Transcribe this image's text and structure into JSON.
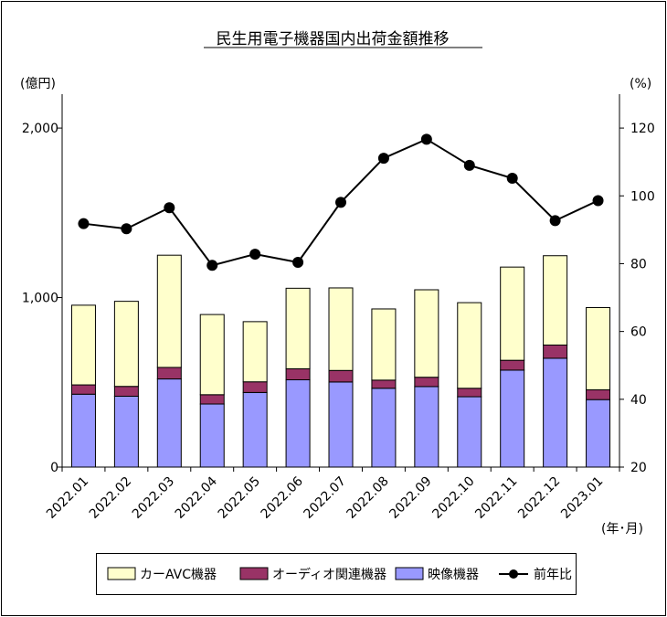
{
  "chart_data": {
    "type": "bar",
    "title": "民生用電子機器国内出荷金額推移",
    "ylabel_left": "(億円)",
    "ylabel_right": "(%)",
    "xlabel": "(年･月)",
    "categories": [
      "2022.01",
      "2022.02",
      "2022.03",
      "2022.04",
      "2022.05",
      "2022.06",
      "2022.07",
      "2022.08",
      "2022.09",
      "2022.10",
      "2022.11",
      "2022.12",
      "2023.01"
    ],
    "ylim_left": [
      0,
      2000
    ],
    "yticks_left": [
      "0",
      "1,000",
      "2,000"
    ],
    "ylim_right": [
      20,
      130
    ],
    "yticks_right": [
      "20",
      "40",
      "60",
      "80",
      "100",
      "120"
    ],
    "series": [
      {
        "name": "映像機器",
        "kind": "stacked-bar",
        "color": "#9999ff",
        "values": [
          430,
          418,
          520,
          372,
          440,
          515,
          502,
          465,
          475,
          415,
          572,
          642,
          398
        ]
      },
      {
        "name": "オーディオ関連機器",
        "kind": "stacked-bar",
        "color": "#993366",
        "values": [
          55,
          58,
          68,
          55,
          63,
          65,
          68,
          48,
          55,
          50,
          58,
          78,
          58
        ]
      },
      {
        "name": "カーAVC機器",
        "kind": "stacked-bar",
        "color": "#ffffcc",
        "values": [
          470,
          502,
          662,
          473,
          355,
          475,
          487,
          420,
          516,
          505,
          550,
          527,
          485
        ]
      },
      {
        "name": "前年比",
        "kind": "line",
        "axis": "right",
        "color": "#000000",
        "values": [
          91.8,
          90.3,
          96.5,
          79.5,
          82.8,
          80.4,
          98.1,
          111.1,
          116.7,
          109.0,
          105.2,
          92.7,
          98.6
        ]
      }
    ],
    "legend_position": "bottom",
    "legend_order": [
      "カーAVC機器",
      "オーディオ関連機器",
      "映像機器",
      "前年比"
    ],
    "grid": false
  }
}
